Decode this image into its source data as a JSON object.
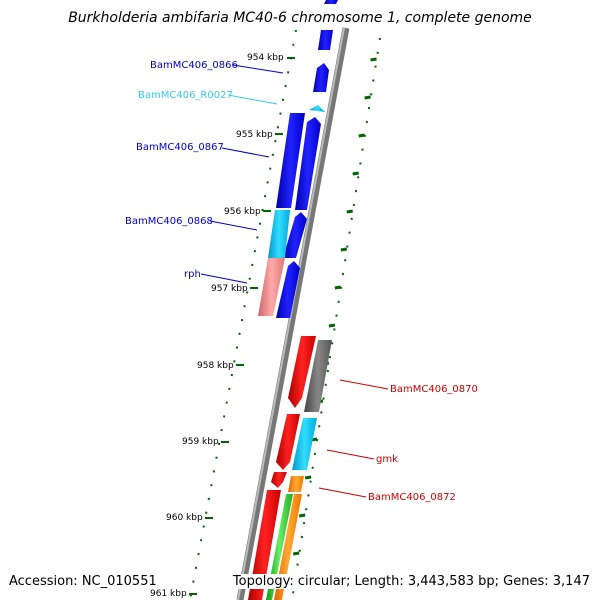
{
  "title": "Burkholderia ambifaria MC40-6 chromosome 1, complete genome",
  "accession": "Accession: NC_010551",
  "topology": "Topology: circular; Length: 3,443,583 bp; Genes: 3,147",
  "ticks": [
    "954 kbp",
    "955 kbp",
    "956 kbp",
    "957 kbp",
    "958 kbp",
    "959 kbp",
    "960 kbp",
    "961 kbp"
  ],
  "gene_labels": [
    {
      "text": "BamMC406_0866",
      "color": "#0000cc"
    },
    {
      "text": "BamMC406_R0027",
      "color": "#33ccee"
    },
    {
      "text": "BamMC406_0867",
      "color": "#0000cc"
    },
    {
      "text": "BamMC406_0868",
      "color": "#0000cc"
    },
    {
      "text": "rph",
      "color": "#0000cc"
    },
    {
      "text": "BamMC406_0870",
      "color": "#cc0000"
    },
    {
      "text": "gmk",
      "color": "#cc0000"
    },
    {
      "text": "BamMC406_0872",
      "color": "#cc0000"
    }
  ],
  "colors": {
    "forward_cds": "#0000ee",
    "rna": "#11bbee",
    "reverse_cds": "#ee0000",
    "pseudo": "#ee8888",
    "gray_gene": "#666666",
    "orange_gene": "#ff8800",
    "green_gene": "#33bb33",
    "tick_green": "#006600"
  }
}
